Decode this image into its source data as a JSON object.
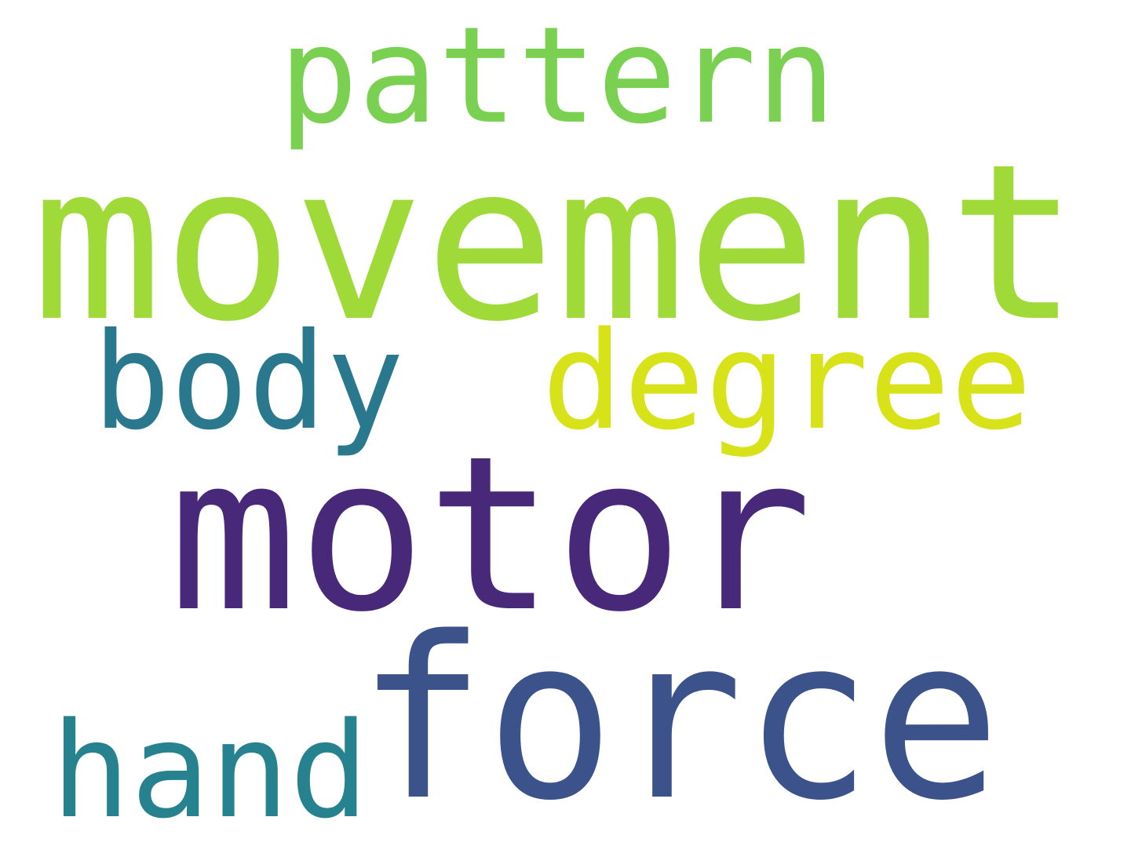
{
  "words": [
    {
      "text": "pattern",
      "color": "#7ad151"
    },
    {
      "text": "movement",
      "color": "#a0da39"
    },
    {
      "text": "body",
      "color": "#2a788e"
    },
    {
      "text": "degree",
      "color": "#d8e219"
    },
    {
      "text": "motor",
      "color": "#482878"
    },
    {
      "text": "force",
      "color": "#3b528b"
    },
    {
      "text": "hand",
      "color": "#26828e"
    }
  ]
}
